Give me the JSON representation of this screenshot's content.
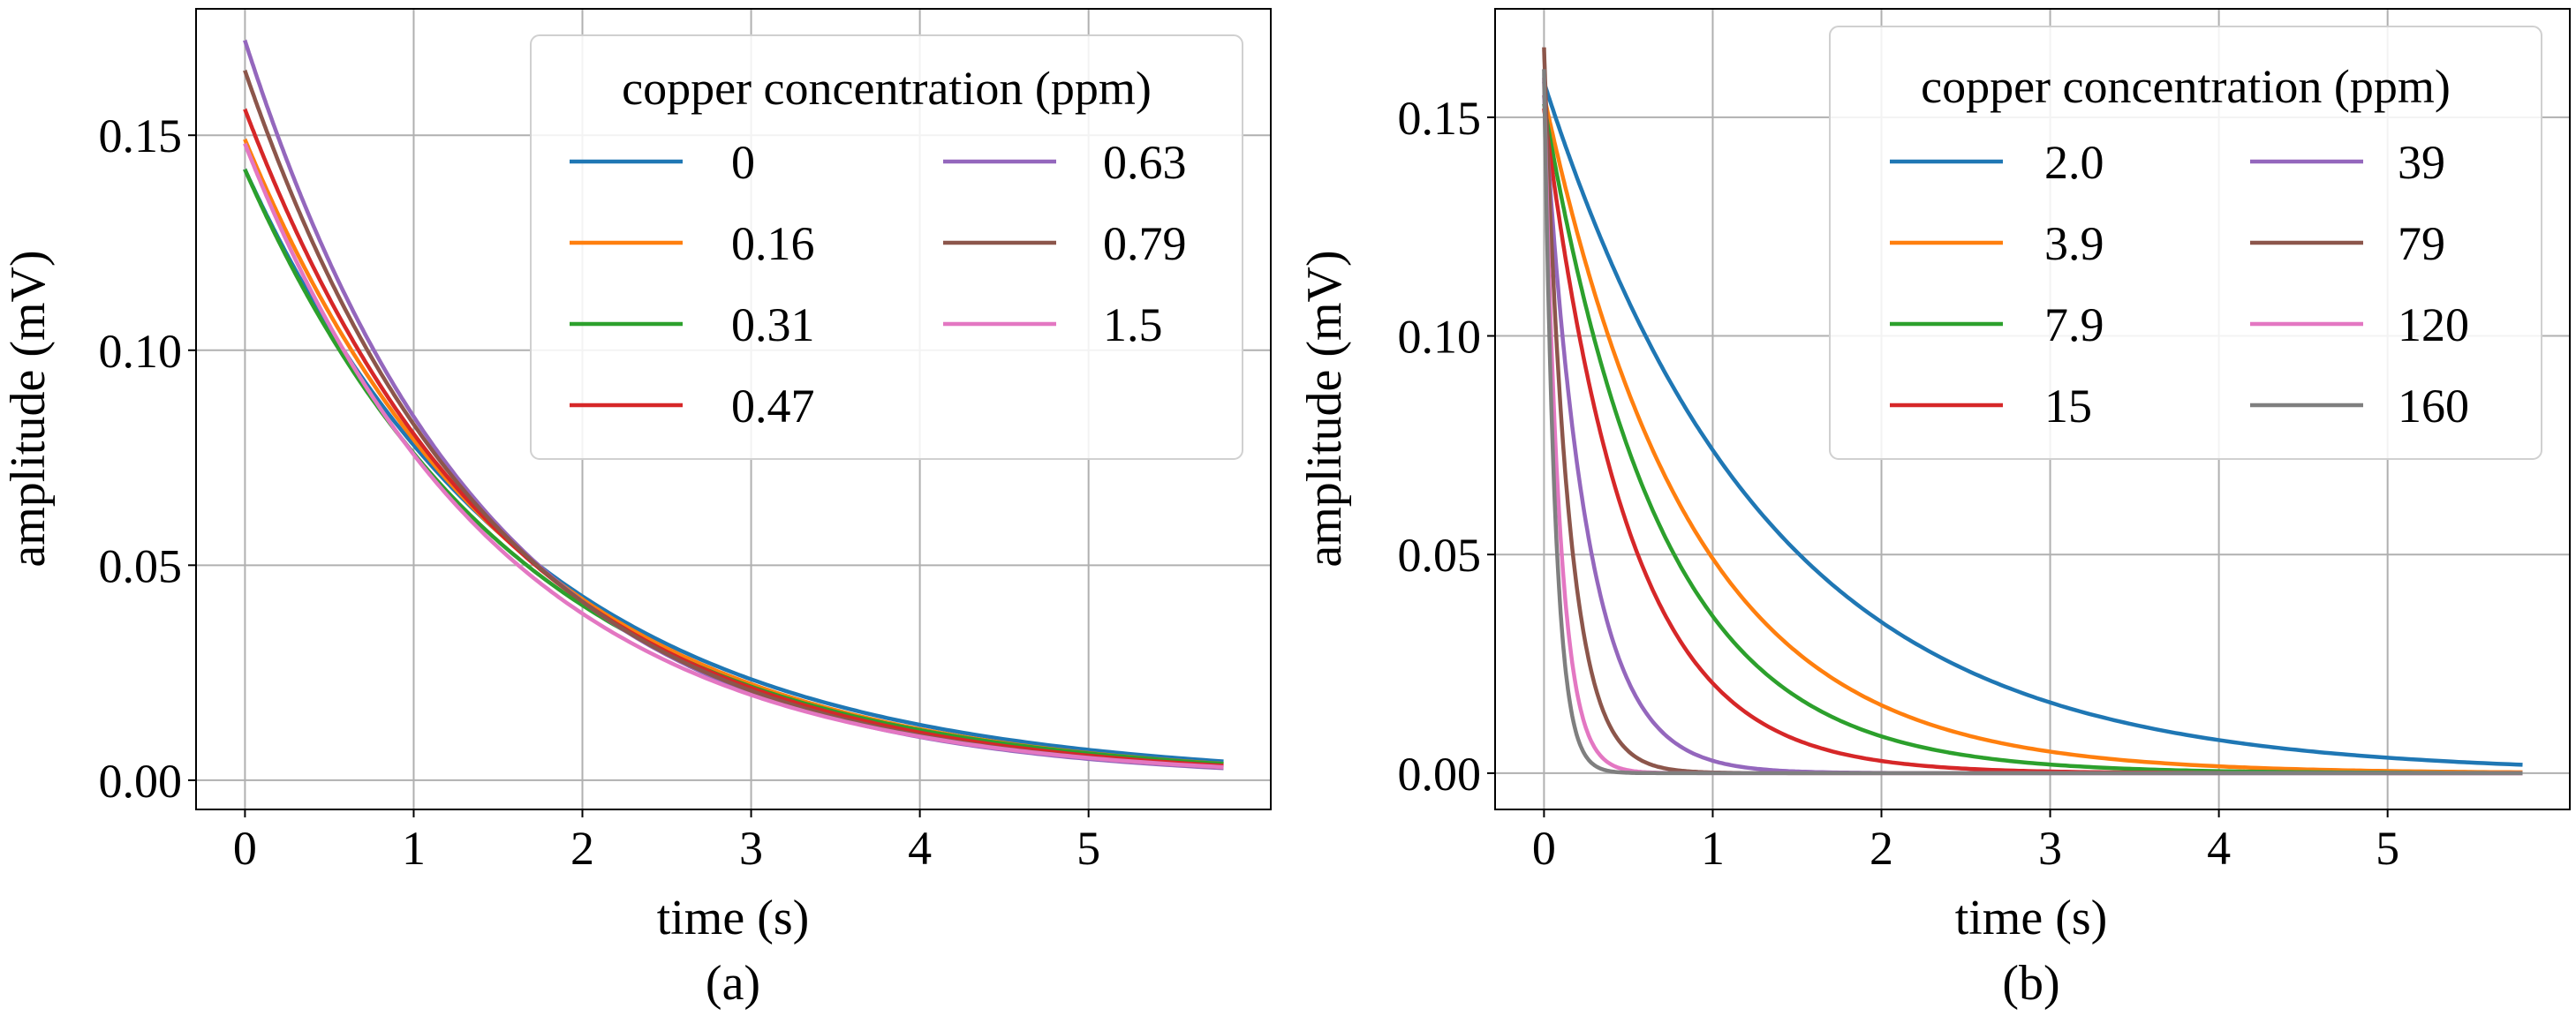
{
  "chart_data": [
    {
      "type": "line",
      "panel_label": "(a)",
      "xlabel": "time (s)",
      "ylabel": "amplitude (mV)",
      "xlim": [
        -0.29,
        6.08
      ],
      "ylim": [
        -0.0068,
        0.1794
      ],
      "xticks": [
        "0",
        "1",
        "2",
        "3",
        "4",
        "5"
      ],
      "yticks": [
        "0.00",
        "0.05",
        "0.10",
        "0.15"
      ],
      "grid": true,
      "legend": {
        "title": "copper concentration (ppm)",
        "placement": "top-right",
        "columns": 2
      },
      "t_end": 5.8,
      "series": [
        {
          "name": "0",
          "color": "#1f77b4",
          "a0": 0.142,
          "rate": 0.6
        },
        {
          "name": "0.16",
          "color": "#ff7f0e",
          "a0": 0.149,
          "rate": 0.632
        },
        {
          "name": "0.31",
          "color": "#2ca02c",
          "a0": 0.142,
          "rate": 0.625
        },
        {
          "name": "0.47",
          "color": "#d62728",
          "a0": 0.156,
          "rate": 0.661
        },
        {
          "name": "0.63",
          "color": "#9467bd",
          "a0": 0.172,
          "rate": 0.71
        },
        {
          "name": "0.79",
          "color": "#8c564b",
          "a0": 0.165,
          "rate": 0.69
        },
        {
          "name": "1.5",
          "color": "#e377c2",
          "a0": 0.148,
          "rate": 0.67
        }
      ]
    },
    {
      "type": "line",
      "panel_label": "(b)",
      "xlabel": "time (s)",
      "ylabel": "amplitude (mV)",
      "xlim": [
        -0.29,
        6.08
      ],
      "ylim": [
        -0.0083,
        0.1748
      ],
      "xticks": [
        "0",
        "1",
        "2",
        "3",
        "4",
        "5"
      ],
      "yticks": [
        "0.00",
        "0.05",
        "0.10",
        "0.15"
      ],
      "grid": true,
      "legend": {
        "title": "copper concentration (ppm)",
        "placement": "top-right",
        "columns": 2
      },
      "t_end": 5.8,
      "series": [
        {
          "name": "2.0",
          "color": "#1f77b4",
          "a0": 0.158,
          "rate": 0.76
        },
        {
          "name": "3.9",
          "color": "#ff7f0e",
          "a0": 0.155,
          "rate": 1.15
        },
        {
          "name": "7.9",
          "color": "#2ca02c",
          "a0": 0.153,
          "rate": 1.45
        },
        {
          "name": "15",
          "color": "#d62728",
          "a0": 0.152,
          "rate": 2.0
        },
        {
          "name": "39",
          "color": "#9467bd",
          "a0": 0.155,
          "rate": 4.0
        },
        {
          "name": "79",
          "color": "#8c564b",
          "a0": 0.166,
          "rate": 7.0
        },
        {
          "name": "120",
          "color": "#e377c2",
          "a0": 0.159,
          "rate": 11.0
        },
        {
          "name": "160",
          "color": "#7f7f7f",
          "a0": 0.161,
          "rate": 15.0
        }
      ]
    }
  ]
}
